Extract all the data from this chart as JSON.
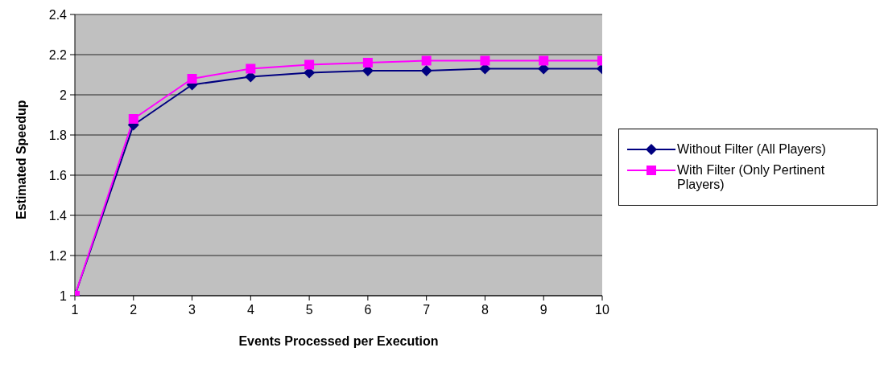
{
  "chart_data": {
    "type": "line",
    "xlabel": "Events Processed per Execution",
    "ylabel": "Estimated Speedup",
    "x": [
      1,
      2,
      3,
      4,
      5,
      6,
      7,
      8,
      9,
      10
    ],
    "xlim": [
      1,
      10
    ],
    "xticks": [
      1,
      2,
      3,
      4,
      5,
      6,
      7,
      8,
      9,
      10
    ],
    "ylim": [
      1,
      2.4
    ],
    "yticks": [
      1,
      1.2,
      1.4,
      1.6,
      1.8,
      2,
      2.2,
      2.4
    ],
    "grid": "y",
    "legend": "right",
    "series": [
      {
        "name": "Without Filter (All Players)",
        "color": "#000080",
        "marker": "diamond",
        "values": [
          1,
          1.85,
          2.05,
          2.09,
          2.11,
          2.12,
          2.12,
          2.13,
          2.13,
          2.13
        ]
      },
      {
        "name": "With Filter (Only Pertinent Players)",
        "color": "#ff00ff",
        "marker": "square",
        "values": [
          1,
          1.88,
          2.08,
          2.13,
          2.15,
          2.16,
          2.17,
          2.17,
          2.17,
          2.17
        ]
      }
    ]
  }
}
